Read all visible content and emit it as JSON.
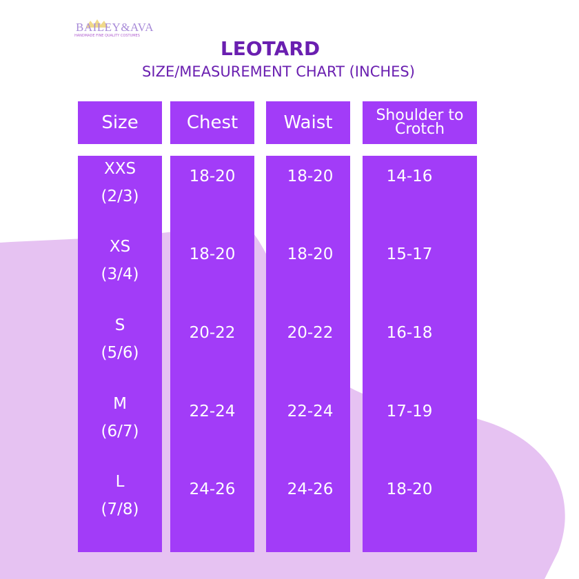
{
  "logo": {
    "brand": "BAILEY&AVA",
    "tagline": "HANDMADE FINE QUALITY COSTUMES"
  },
  "header": {
    "title": "LEOTARD",
    "subtitle": "SIZE/MEASUREMENT CHART (INCHES)"
  },
  "table": {
    "columns": [
      "Size",
      "Chest",
      "Waist",
      "Shoulder to Crotch"
    ],
    "rows": [
      {
        "size": "XXS",
        "age": "(2/3)",
        "chest": "18-20",
        "waist": "18-20",
        "shoulder_to_crotch": "14-16"
      },
      {
        "size": "XS",
        "age": "(3/4)",
        "chest": "18-20",
        "waist": "18-20",
        "shoulder_to_crotch": "15-17"
      },
      {
        "size": "S",
        "age": "(5/6)",
        "chest": "20-22",
        "waist": "20-22",
        "shoulder_to_crotch": "16-18"
      },
      {
        "size": "M",
        "age": "(6/7)",
        "chest": "22-24",
        "waist": "22-24",
        "shoulder_to_crotch": "17-19"
      },
      {
        "size": "L",
        "age": "(7/8)",
        "chest": "24-26",
        "waist": "24-26",
        "shoulder_to_crotch": "18-20"
      }
    ]
  }
}
